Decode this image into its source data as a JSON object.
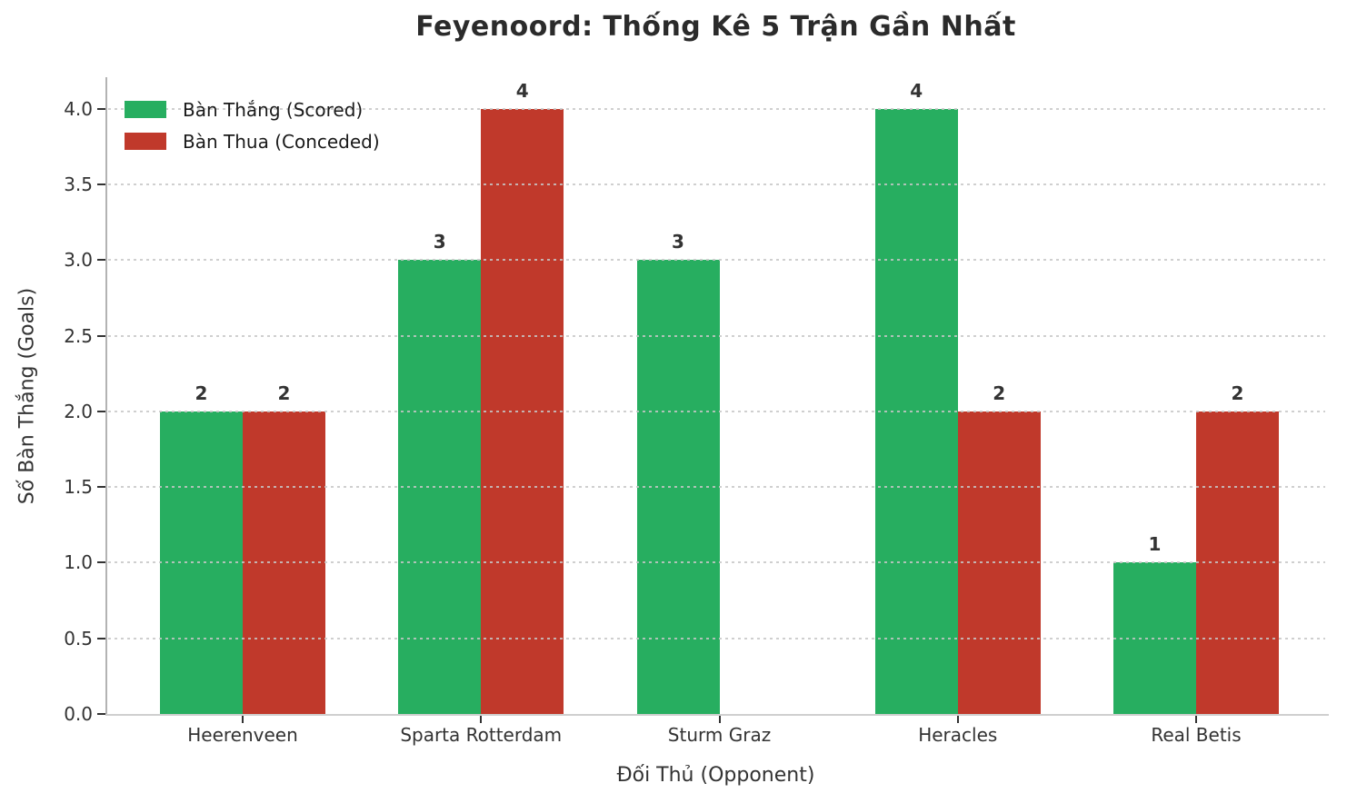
{
  "chart_data": {
    "type": "bar",
    "title": "Feyenoord: Thống Kê 5 Trận Gần Nhất",
    "xlabel": "Đối Thủ (Opponent)",
    "ylabel": "Số Bàn Thắng (Goals)",
    "categories": [
      "Heerenveen",
      "Sparta Rotterdam",
      "Sturm Graz",
      "Heracles",
      "Real Betis"
    ],
    "series": [
      {
        "name": "Bàn Thắng (Scored)",
        "color": "#27ae60",
        "values": [
          2,
          3,
          3,
          4,
          1
        ],
        "labels": [
          "2",
          "3",
          "3",
          "4",
          "1"
        ]
      },
      {
        "name": "Bàn Thua (Conceded)",
        "color": "#c0392b",
        "values": [
          2,
          4,
          0,
          2,
          2
        ],
        "labels": [
          "2",
          "4",
          "",
          "2",
          "2"
        ]
      }
    ],
    "ylim": [
      0,
      4.21
    ],
    "yticks": [
      "0.0",
      "0.5",
      "1.0",
      "1.5",
      "2.0",
      "2.5",
      "3.0",
      "3.5",
      "4.0"
    ],
    "grid": "dotted-horizontal",
    "legend_position": "upper-left",
    "value_labels_shown": true
  }
}
